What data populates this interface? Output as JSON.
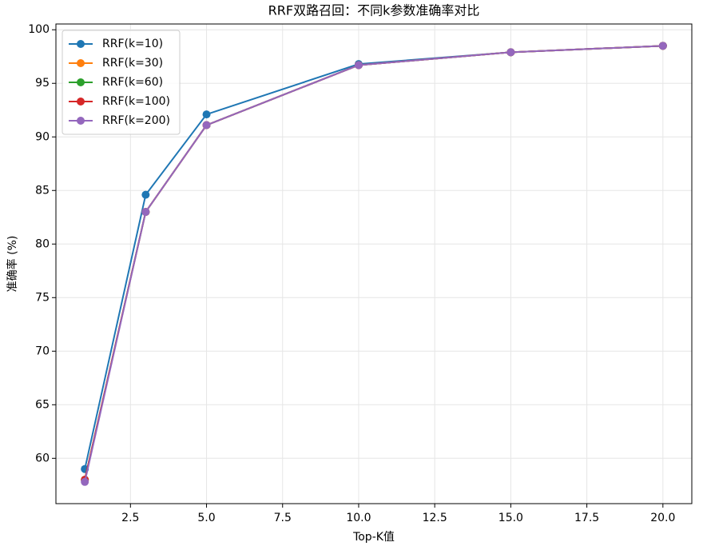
{
  "chart_data": {
    "type": "line",
    "title": "RRF双路召回：不同k参数准确率对比",
    "x_label": "Top-K值",
    "y_label": "准确率 (%)",
    "x": [
      1,
      3,
      5,
      10,
      15,
      20
    ],
    "series": [
      {
        "name": "RRF(k=10)",
        "color": "#1f77b4",
        "values": [
          59.0,
          84.6,
          92.1,
          96.8,
          97.9,
          98.5
        ]
      },
      {
        "name": "RRF(k=30)",
        "color": "#ff7f0e",
        "values": [
          58.0,
          83.0,
          91.1,
          96.7,
          97.9,
          98.5
        ]
      },
      {
        "name": "RRF(k=60)",
        "color": "#2ca02c",
        "values": [
          58.0,
          83.0,
          91.1,
          96.7,
          97.9,
          98.5
        ]
      },
      {
        "name": "RRF(k=100)",
        "color": "#d62728",
        "values": [
          58.0,
          83.0,
          91.1,
          96.7,
          97.9,
          98.5
        ]
      },
      {
        "name": "RRF(k=200)",
        "color": "#9467bd",
        "values": [
          57.8,
          83.0,
          91.1,
          96.7,
          97.9,
          98.5
        ]
      }
    ],
    "xlim": [
      0.05,
      20.95
    ],
    "xticks": [
      2.5,
      {
        "value": 5,
        "label": "5.0"
      },
      7.5,
      {
        "value": 10,
        "label": "10.0"
      },
      12.5,
      {
        "value": 15,
        "label": "15.0"
      },
      17.5,
      {
        "value": 20,
        "label": "20.0"
      }
    ],
    "ylim": [
      55.77,
      100.54
    ],
    "yticks": [
      60,
      65,
      70,
      75,
      80,
      85,
      90,
      95,
      100
    ],
    "grid": true,
    "legend": "upper-left"
  }
}
